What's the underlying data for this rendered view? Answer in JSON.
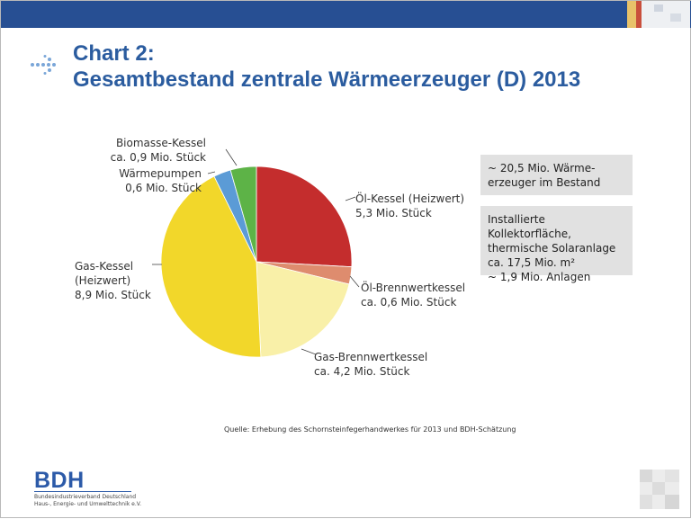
{
  "slide": {
    "title_line1": "Chart 2:",
    "title_line2": "Gesamtbestand zentrale Wärmeerzeuger (D) 2013",
    "source": "Quelle: Erhebung des Schornsteinfegerhandwerkes für 2013 und BDH-Schätzung"
  },
  "info_boxes": [
    "~ 20,5 Mio. Wärme-\nerzeuger im Bestand",
    "Installierte Kollektorfläche,\nthermische Solaranlage\nca. 17,5 Mio. m²\n~ 1,9 Mio. Anlagen"
  ],
  "logo": {
    "name": "BDH",
    "subtitle": "Bundesindustrieverband Deutschland\nHaus-, Energie- und Umwelttechnik e.V."
  },
  "chart_data": {
    "type": "pie",
    "unit": "Mio. Stück",
    "slices": [
      {
        "name": "Öl-Kessel (Heizwert)",
        "value": 5.3,
        "label": "Öl-Kessel (Heizwert)\n5,3 Mio. Stück",
        "color": "#c42d2d"
      },
      {
        "name": "Öl-Brennwertkessel",
        "value": 0.6,
        "label": "Öl-Brennwertkessel\nca. 0,6 Mio. Stück",
        "color": "#de8c6e"
      },
      {
        "name": "Gas-Brennwertkessel",
        "value": 4.2,
        "label": "Gas-Brennwertkessel\nca. 4,2 Mio. Stück",
        "color": "#f9f0a8"
      },
      {
        "name": "Gas-Kessel (Heizwert)",
        "value": 8.9,
        "label": "Gas-Kessel\n(Heizwert)\n8,9 Mio. Stück",
        "color": "#f2d72a"
      },
      {
        "name": "Wärmepumpen",
        "value": 0.6,
        "label": "Wärmepumpen\n0,6 Mio. Stück",
        "color": "#5b9bd6"
      },
      {
        "name": "Biomasse-Kessel",
        "value": 0.9,
        "label": "Biomasse-Kessel\nca. 0,9 Mio. Stück",
        "color": "#5db347"
      }
    ]
  }
}
